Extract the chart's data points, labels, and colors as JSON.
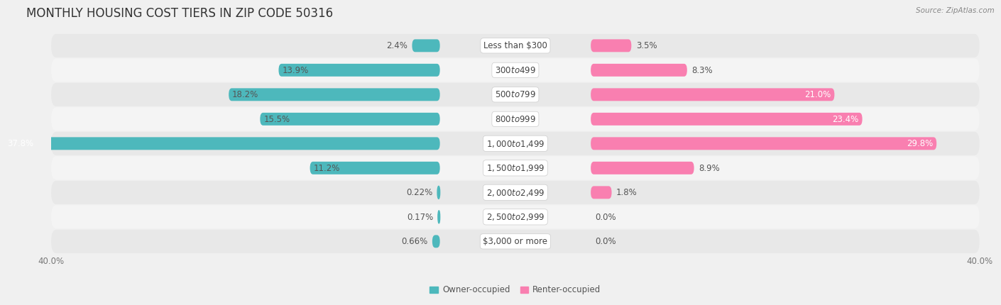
{
  "title": "MONTHLY HOUSING COST TIERS IN ZIP CODE 50316",
  "source": "Source: ZipAtlas.com",
  "categories": [
    "Less than $300",
    "$300 to $499",
    "$500 to $799",
    "$800 to $999",
    "$1,000 to $1,499",
    "$1,500 to $1,999",
    "$2,000 to $2,499",
    "$2,500 to $2,999",
    "$3,000 or more"
  ],
  "owner_values": [
    2.4,
    13.9,
    18.2,
    15.5,
    37.8,
    11.2,
    0.22,
    0.17,
    0.66
  ],
  "renter_values": [
    3.5,
    8.3,
    21.0,
    23.4,
    29.8,
    8.9,
    1.8,
    0.0,
    0.0
  ],
  "owner_color": "#4db8bc",
  "renter_color": "#f97fb0",
  "owner_label": "Owner-occupied",
  "renter_label": "Renter-occupied",
  "axis_limit": 40.0,
  "title_fontsize": 12,
  "label_fontsize": 8.5,
  "category_fontsize": 8.5,
  "axis_label_fontsize": 8.5,
  "bar_height": 0.52,
  "row_colors": [
    "#e8e8e8",
    "#f4f4f4"
  ]
}
